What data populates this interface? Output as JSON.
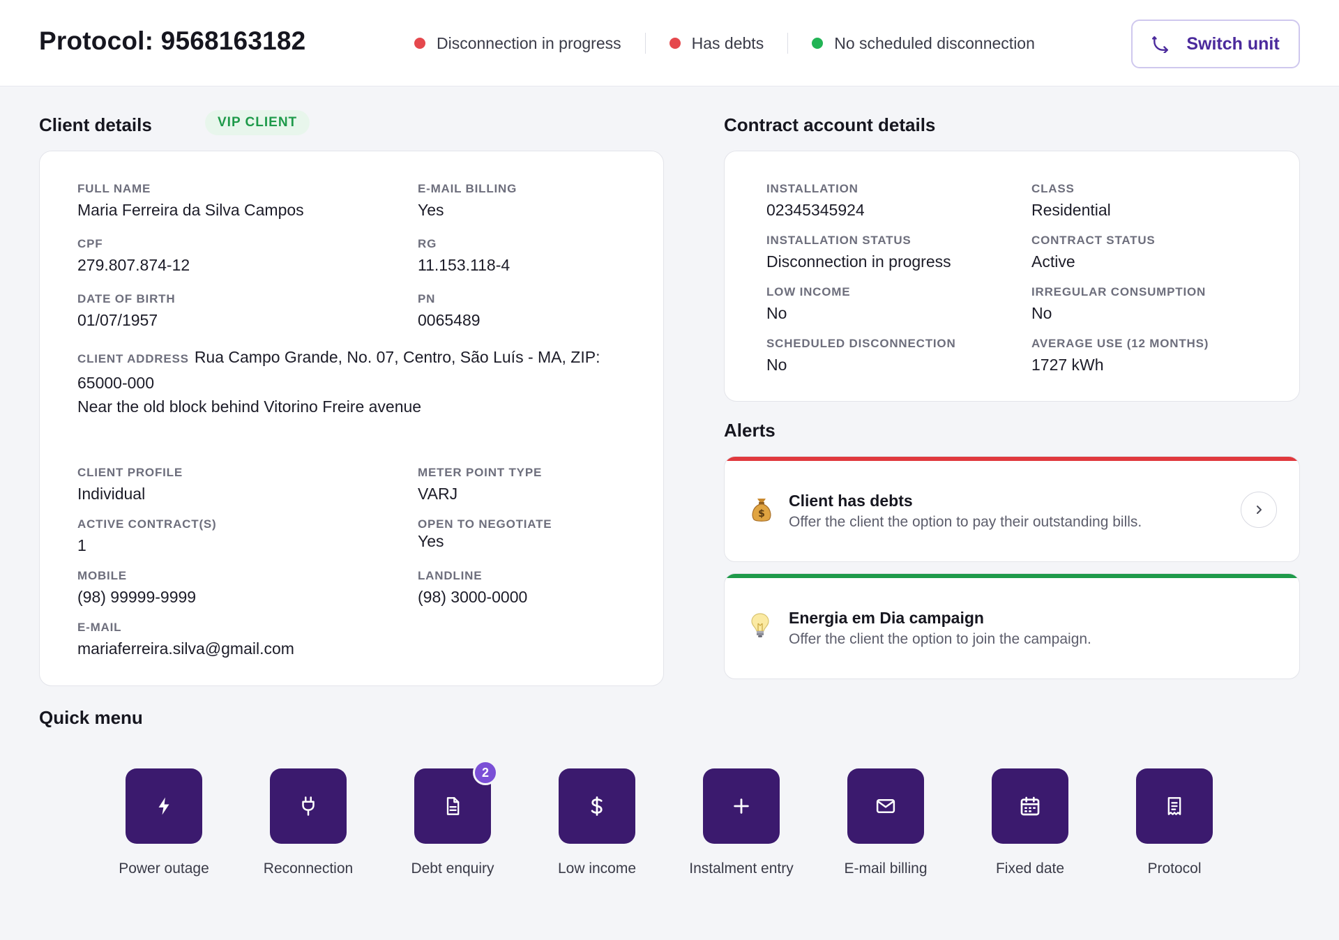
{
  "header": {
    "title": "Protocol: 9568163182",
    "statuses": [
      {
        "label": "Disconnection in progress",
        "color": "#e5484d"
      },
      {
        "label": "Has debts",
        "color": "#e5484d"
      },
      {
        "label": "No scheduled disconnection",
        "color": "#22b455"
      }
    ],
    "switch_unit_label": "Switch unit",
    "switch_unit_icon": "phone-transfer-icon"
  },
  "client": {
    "section_title": "Client details",
    "badge": "VIP CLIENT",
    "full_name": {
      "label": "FULL NAME",
      "value": "Maria Ferreira da Silva Campos"
    },
    "email_billing": {
      "label": "E-MAIL BILLING",
      "value": "Yes"
    },
    "cpf": {
      "label": "CPF",
      "value": "279.807.874-12"
    },
    "rg": {
      "label": "RG",
      "value": "11.153.118-4"
    },
    "dob": {
      "label": "DATE OF BIRTH",
      "value": "01/07/1957"
    },
    "pn": {
      "label": "PN",
      "value": "0065489"
    },
    "address": {
      "label": "CLIENT ADDRESS",
      "line1": "Rua Campo Grande, No. 07, Centro, São Luís - MA, ZIP: 65000-000",
      "line2": "Near the old block behind Vitorino Freire avenue"
    },
    "profile": {
      "label": "CLIENT PROFILE",
      "value": "Individual"
    },
    "meter_type": {
      "label": "METER POINT TYPE",
      "value": "VARJ"
    },
    "active_contracts": {
      "label": "ACTIVE CONTRACT(S)",
      "value": "1"
    },
    "open_to_negotiate": {
      "label": "OPEN TO NEGOTIATE",
      "value": "Yes"
    },
    "mobile": {
      "label": "MOBILE",
      "value": "(98) 99999-9999"
    },
    "landline": {
      "label": "LANDLINE",
      "value": "(98) 3000-0000"
    },
    "email": {
      "label": "E-MAIL",
      "value": "mariaferreira.silva@gmail.com"
    }
  },
  "contract": {
    "section_title": "Contract account details",
    "installation": {
      "label": "INSTALLATION",
      "value": "02345345924"
    },
    "class": {
      "label": "CLASS",
      "value": "Residential"
    },
    "installation_status": {
      "label": "INSTALLATION STATUS",
      "value": "Disconnection in progress"
    },
    "contract_status": {
      "label": "CONTRACT STATUS",
      "value": "Active"
    },
    "low_income": {
      "label": "LOW INCOME",
      "value": "No"
    },
    "irregular_consumption": {
      "label": "IRREGULAR CONSUMPTION",
      "value": "No"
    },
    "scheduled_disconnection": {
      "label": "SCHEDULED DISCONNECTION",
      "value": "No"
    },
    "average_use": {
      "label": "AVERAGE USE (12 MONTHS)",
      "value": "1727 kWh"
    }
  },
  "alerts": {
    "section_title": "Alerts",
    "items": [
      {
        "title": "Client has debts",
        "text": "Offer the client the option to pay their outstanding bills.",
        "color": "#e0393e",
        "icon": "money-bag-icon"
      },
      {
        "title": "Energia em Dia campaign",
        "text": "Offer the client the option to join the campaign.",
        "color": "#1e9a4a",
        "icon": "light-bulb-icon"
      }
    ]
  },
  "quick_menu": {
    "section_title": "Quick menu",
    "items": [
      {
        "label": "Power outage",
        "icon": "lightning-icon"
      },
      {
        "label": "Reconnection",
        "icon": "plug-icon"
      },
      {
        "label": "Debt enquiry",
        "icon": "document-icon",
        "badge": "2"
      },
      {
        "label": "Low income",
        "icon": "dollar-icon"
      },
      {
        "label": "Instalment entry",
        "icon": "plus-icon"
      },
      {
        "label": "E-mail billing",
        "icon": "envelope-icon"
      },
      {
        "label": "Fixed date",
        "icon": "calendar-icon"
      },
      {
        "label": "Protocol",
        "icon": "receipt-icon"
      }
    ]
  },
  "colors": {
    "accent": "#3b1a6e",
    "accent_text": "#4b2a9c",
    "badge": "#7a4fd6"
  }
}
